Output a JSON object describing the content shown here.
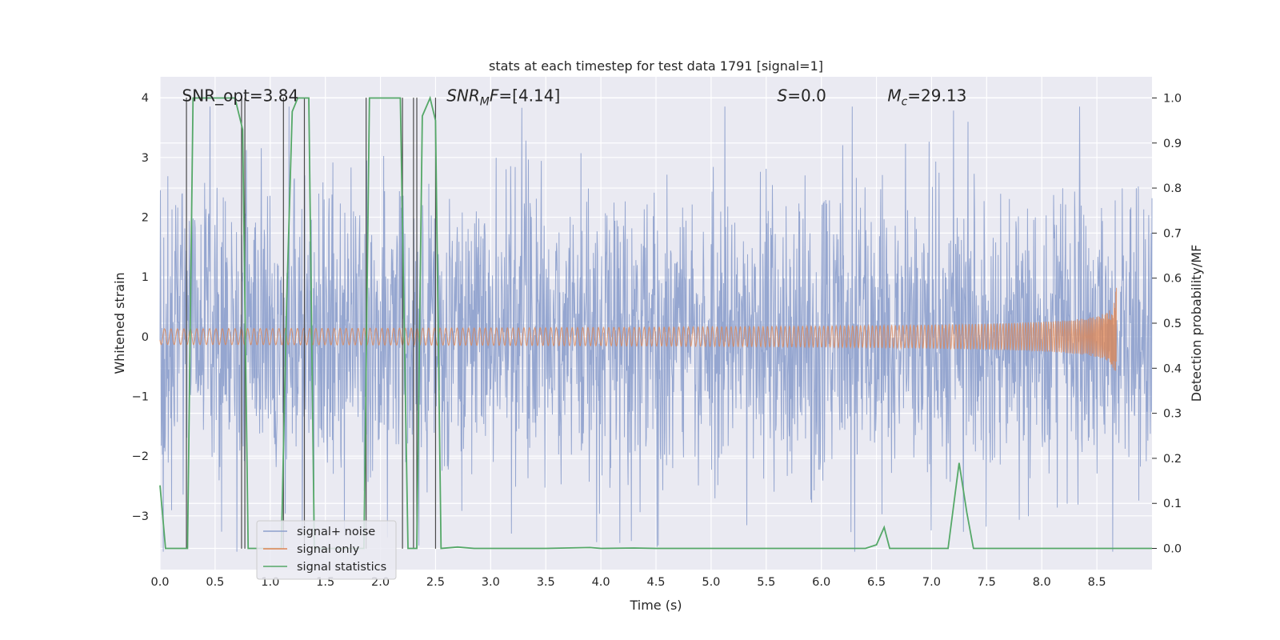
{
  "chart_data": {
    "type": "line",
    "title": "stats at each timestep for test data 1791 [signal=1]",
    "xlabel": "Time (s)",
    "ylabel_left": "Whitened strain",
    "ylabel_right": "Detection probability/MF",
    "xlim": [
      0,
      9.0
    ],
    "ylim_left": [
      -3.9,
      4.35
    ],
    "ylim_right": [
      -0.047,
      1.047
    ],
    "xticks": [
      "0.0",
      "0.5",
      "1.0",
      "1.5",
      "2.0",
      "2.5",
      "3.0",
      "3.5",
      "4.0",
      "4.5",
      "5.0",
      "5.5",
      "6.0",
      "6.5",
      "7.0",
      "7.5",
      "8.0",
      "8.5"
    ],
    "xtick_values": [
      0,
      0.5,
      1,
      1.5,
      2,
      2.5,
      3,
      3.5,
      4,
      4.5,
      5,
      5.5,
      6,
      6.5,
      7,
      7.5,
      8,
      8.5
    ],
    "yticks_left": [
      "−3",
      "−2",
      "−1",
      "0",
      "1",
      "2",
      "3",
      "4"
    ],
    "ytick_values_left": [
      -3,
      -2,
      -1,
      0,
      1,
      2,
      3,
      4
    ],
    "yticks_right": [
      "0.0",
      "0.1",
      "0.2",
      "0.3",
      "0.4",
      "0.5",
      "0.6",
      "0.7",
      "0.8",
      "0.9",
      "1.0"
    ],
    "ytick_values_right": [
      0,
      0.1,
      0.2,
      0.3,
      0.4,
      0.5,
      0.6,
      0.7,
      0.8,
      0.9,
      1.0
    ],
    "annotations": [
      {
        "x": 0.2,
        "y": 4.02,
        "text": "SNR_opt=3.84",
        "italic": false
      },
      {
        "x": 2.6,
        "y": 4.02,
        "text": "SNR_MF=[4.14]",
        "italic": true
      },
      {
        "x": 5.6,
        "y": 4.02,
        "text": "S=0.0",
        "italic": true
      },
      {
        "x": 6.6,
        "y": 4.02,
        "text": "M_c=29.13",
        "italic": true
      }
    ],
    "series": [
      {
        "name": "signal+ noise",
        "color": "#8c9fcc",
        "axis": "left",
        "description": "whitened noisy strain, amplitude roughly within ±3.5",
        "t_range": [
          0,
          9.0
        ]
      },
      {
        "name": "signal only",
        "color": "#dd8452",
        "axis": "left",
        "description": "chirp signal, near zero until ~6 s, peak ~±0.9 at ~8.65 s",
        "t_range": [
          0,
          8.68
        ],
        "merger_time": 8.68,
        "peak_amplitude": 0.9
      },
      {
        "name": "signal statistics",
        "color": "#55a868",
        "axis": "right",
        "x": [
          0.0,
          0.05,
          0.25,
          0.3,
          0.68,
          0.75,
          0.8,
          1.1,
          1.15,
          1.2,
          1.25,
          1.35,
          1.4,
          1.85,
          1.9,
          2.18,
          2.25,
          2.33,
          2.38,
          2.45,
          2.5,
          2.55,
          2.7,
          2.85,
          3.5,
          3.9,
          4.0,
          4.3,
          4.5,
          6.4,
          6.5,
          6.57,
          6.62,
          6.7,
          7.15,
          7.25,
          7.32,
          7.38,
          7.5,
          9.0
        ],
        "y": [
          0.14,
          0.0,
          0.0,
          1.0,
          1.0,
          0.93,
          0.0,
          0.0,
          0.55,
          0.97,
          1.0,
          1.0,
          0.0,
          0.0,
          1.0,
          1.0,
          0.0,
          0.0,
          0.96,
          1.0,
          0.95,
          0.0,
          0.003,
          0.0,
          0.0,
          0.002,
          0.0,
          0.001,
          0.0,
          0.0,
          0.008,
          0.047,
          0.0,
          0.0,
          0.0,
          0.19,
          0.08,
          0.0,
          0.0,
          0.0
        ]
      }
    ],
    "vlines_x": [
      0.24,
      0.74,
      0.77,
      1.12,
      1.31,
      1.87,
      2.2,
      2.3,
      2.33,
      2.5
    ],
    "legend": {
      "position": "lower-left",
      "entries": [
        "signal+ noise",
        "signal only",
        "signal statistics"
      ]
    },
    "grid": true
  }
}
